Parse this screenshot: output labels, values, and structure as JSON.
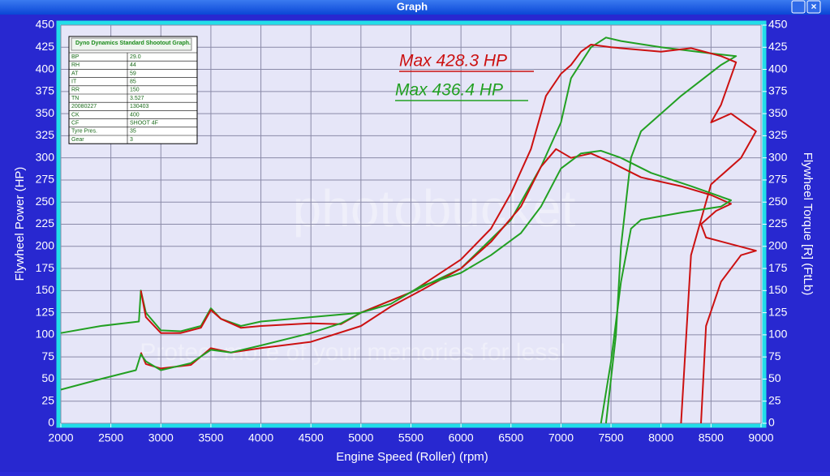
{
  "window_title": "Graph",
  "info_box": {
    "title": "Dyno Dynamics Standard Shootout Graph.",
    "rows": [
      [
        "BP",
        "29.0"
      ],
      [
        "RH",
        "44"
      ],
      [
        "AT",
        "59"
      ],
      [
        "IT",
        "85"
      ],
      [
        "RR",
        "150"
      ],
      [
        "TN",
        "3.527"
      ],
      [
        "20080227",
        "130403"
      ],
      [
        "CK",
        "400"
      ],
      [
        "CF",
        "SHOOT 4F"
      ],
      [
        "Tyre Pres.",
        "35"
      ],
      [
        "Gear",
        "3"
      ]
    ]
  },
  "watermark": [
    "photobucket",
    "Protect more of your memories for less!"
  ],
  "chart_data": {
    "type": "line",
    "x_label": "Engine Speed (Roller) (rpm)",
    "y_label": "Flywheel Power (HP)",
    "y2_label": "Flywheel Torque [R] (FtLb)",
    "annotations": [
      {
        "text": "Max 428.3 HP",
        "color": "#cc1111"
      },
      {
        "text": "Max 436.4 HP",
        "color": "#22a022"
      }
    ],
    "xlim": [
      2000,
      9000
    ],
    "xticks": [
      2000,
      2500,
      3000,
      3500,
      4000,
      4500,
      5000,
      5500,
      6000,
      6500,
      7000,
      7500,
      8000,
      8500,
      9000
    ],
    "ylim": [
      0,
      450
    ],
    "yticks": [
      0,
      25,
      50,
      75,
      100,
      125,
      150,
      175,
      200,
      225,
      250,
      275,
      300,
      325,
      350,
      375,
      400,
      425,
      450
    ],
    "y2lim": [
      0,
      450
    ],
    "y2ticks": [
      0,
      25,
      50,
      75,
      100,
      125,
      150,
      175,
      200,
      225,
      250,
      275,
      300,
      325,
      350,
      375,
      400,
      425,
      450
    ],
    "grid": true,
    "series": [
      {
        "color": "#22a022",
        "x": [
          2000,
          2400,
          2780,
          2800,
          2850,
          3000,
          3200,
          3400,
          3500,
          3600,
          3800,
          4000,
          4500,
          5000,
          5500,
          6000,
          6500,
          6800,
          7000,
          7100,
          7300,
          7450,
          7600,
          8000,
          8500,
          8750,
          8600,
          8200,
          7800,
          7700,
          7600,
          7550,
          7450
        ],
        "values": [
          102,
          110,
          115,
          150,
          125,
          105,
          104,
          110,
          130,
          118,
          110,
          115,
          120,
          125,
          148,
          175,
          230,
          290,
          340,
          390,
          425,
          436,
          432,
          425,
          418,
          415,
          405,
          370,
          330,
          300,
          200,
          100,
          0
        ]
      },
      {
        "color": "#cc1111",
        "x": [
          2800,
          2850,
          3000,
          3200,
          3400,
          3500,
          3600,
          3800,
          4000,
          4500,
          4800,
          5000,
          5500,
          6000,
          6300,
          6500,
          6700,
          6850,
          7000,
          7100,
          7200,
          7300,
          7500,
          8000,
          8300,
          8600,
          8750,
          8600,
          8500,
          8700,
          8950,
          8800,
          8500,
          8400,
          8300,
          8200
        ],
        "values": [
          150,
          120,
          102,
          102,
          108,
          128,
          118,
          108,
          110,
          113,
          112,
          125,
          148,
          185,
          220,
          260,
          310,
          370,
          395,
          405,
          420,
          428,
          425,
          420,
          424,
          415,
          408,
          360,
          340,
          350,
          330,
          300,
          270,
          230,
          190,
          0
        ]
      },
      {
        "color": "#cc1111",
        "axis": "y2",
        "x": [
          2800,
          2850,
          3000,
          3300,
          3500,
          3700,
          4000,
          4500,
          5000,
          5300,
          5600,
          6000,
          6300,
          6600,
          6800,
          6950,
          7100,
          7300,
          7500,
          7800,
          8200,
          8500,
          8700,
          8550,
          8400,
          8450,
          8950,
          8800,
          8600,
          8450,
          8400
        ],
        "values": [
          80,
          67,
          62,
          66,
          85,
          80,
          85,
          92,
          110,
          132,
          150,
          175,
          205,
          245,
          290,
          310,
          300,
          305,
          295,
          278,
          268,
          258,
          248,
          240,
          225,
          210,
          195,
          190,
          160,
          110,
          0
        ]
      },
      {
        "color": "#22a022",
        "axis": "y2",
        "x": [
          2000,
          2400,
          2750,
          2800,
          2850,
          3000,
          3300,
          3500,
          3700,
          4000,
          4500,
          4800,
          5000,
          5300,
          5600,
          6000,
          6300,
          6600,
          6800,
          7000,
          7200,
          7400,
          7600,
          7900,
          8300,
          8700,
          8600,
          8200,
          7800,
          7700,
          7600,
          7500,
          7400
        ],
        "values": [
          38,
          50,
          60,
          78,
          70,
          60,
          68,
          83,
          80,
          88,
          102,
          113,
          125,
          135,
          155,
          170,
          190,
          215,
          245,
          288,
          305,
          308,
          300,
          283,
          268,
          252,
          245,
          238,
          230,
          220,
          160,
          70,
          0
        ]
      }
    ]
  }
}
